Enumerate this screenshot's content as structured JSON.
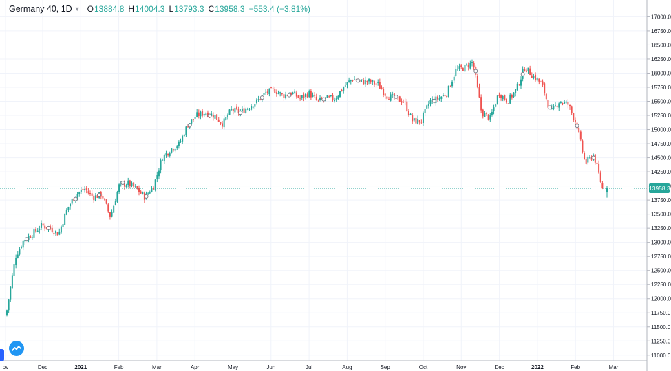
{
  "header": {
    "symbol": "Germany 40, 1D",
    "open_label": "O",
    "open_value": "13884.8",
    "high_label": "H",
    "high_value": "14004.3",
    "low_label": "L",
    "low_value": "13793.3",
    "close_label": "C",
    "close_value": "13958.3",
    "change": "−553.4 (−3.81%)"
  },
  "price_label": "13958.3",
  "colors": {
    "up": "#26a69a",
    "down": "#ef5350",
    "grid": "#f0f3fa",
    "axis_text": "#131722",
    "last_price_line": "#26a69a"
  },
  "icons": {
    "logo": "tradingview-logo-icon",
    "menu_caret": "chevron-down-icon"
  },
  "chart_data": {
    "type": "candlestick",
    "title": "Germany 40, 1D",
    "ylim": [
      10900,
      17200
    ],
    "y_ticks": [
      11000,
      11250,
      11500,
      11750,
      12000,
      12250,
      12500,
      12750,
      13000,
      13250,
      13500,
      13750,
      14000,
      14250,
      14500,
      14750,
      15000,
      15250,
      15500,
      15750,
      16000,
      16250,
      16500,
      16750,
      17000
    ],
    "y_tick_labels": [
      "11000.0",
      "11250.0",
      "11500.0",
      "11750.0",
      "12000.0",
      "12250.0",
      "12500.0",
      "12750.0",
      "13000.0",
      "13250.0",
      "13500.0",
      "13750.0",
      "14000.0",
      "14250.0",
      "14500.0",
      "14750.0",
      "15000.0",
      "15250.0",
      "15500.0",
      "15750.0",
      "16000.0",
      "16250.0",
      "16500.0",
      "16750.0",
      "17000.0"
    ],
    "x_labels": [
      "ov",
      "Dec",
      "2021",
      "Feb",
      "Mar",
      "Apr",
      "May",
      "Jun",
      "Jul",
      "Aug",
      "Sep",
      "Oct",
      "Nov",
      "Dec",
      "2022",
      "Feb",
      "Mar"
    ],
    "x_bold_labels": [
      "2021",
      "2022"
    ],
    "last_price": 13958.3,
    "last_ohlc": {
      "open": 13884.8,
      "high": 14004.3,
      "low": 13793.3,
      "close": 13958.3
    },
    "close_path": [
      [
        "Nov 2",
        11800
      ],
      [
        "Nov 9",
        12750
      ],
      [
        "Nov 16",
        13050
      ],
      [
        "Nov 23",
        13150
      ],
      [
        "Dec 1",
        13300
      ],
      [
        "Dec 8",
        13250
      ],
      [
        "Dec 15",
        13150
      ],
      [
        "Dec 22",
        13600
      ],
      [
        "Jan 4",
        13850
      ],
      [
        "Jan 8",
        13950
      ],
      [
        "Jan 15",
        13800
      ],
      [
        "Jan 22",
        13850
      ],
      [
        "Jan 29",
        13450
      ],
      [
        "Feb 5",
        14000
      ],
      [
        "Feb 12",
        14050
      ],
      [
        "Feb 19",
        13950
      ],
      [
        "Feb 26",
        13800
      ],
      [
        "Mar 5",
        14000
      ],
      [
        "Mar 12",
        14500
      ],
      [
        "Mar 19",
        14650
      ],
      [
        "Mar 26",
        14750
      ],
      [
        "Apr 2",
        15100
      ],
      [
        "Apr 9",
        15250
      ],
      [
        "Apr 16",
        15300
      ],
      [
        "Apr 23",
        15250
      ],
      [
        "Apr 30",
        15100
      ],
      [
        "May 7",
        15350
      ],
      [
        "May 14",
        15300
      ],
      [
        "May 21",
        15400
      ],
      [
        "May 28",
        15500
      ],
      [
        "Jun 4",
        15650
      ],
      [
        "Jun 11",
        15700
      ],
      [
        "Jun 18",
        15600
      ],
      [
        "Jun 25",
        15650
      ],
      [
        "Jul 2",
        15550
      ],
      [
        "Jul 9",
        15650
      ],
      [
        "Jul 16",
        15500
      ],
      [
        "Jul 23",
        15550
      ],
      [
        "Jul 30",
        15550
      ],
      [
        "Aug 6",
        15750
      ],
      [
        "Aug 13",
        15900
      ],
      [
        "Aug 20",
        15850
      ],
      [
        "Aug 27",
        15850
      ],
      [
        "Sep 3",
        15800
      ],
      [
        "Sep 10",
        15600
      ],
      [
        "Sep 17",
        15550
      ],
      [
        "Sep 24",
        15500
      ],
      [
        "Oct 1",
        15150
      ],
      [
        "Oct 8",
        15150
      ],
      [
        "Oct 15",
        15500
      ],
      [
        "Oct 22",
        15550
      ],
      [
        "Oct 29",
        15650
      ],
      [
        "Nov 5",
        16050
      ],
      [
        "Nov 12",
        16100
      ],
      [
        "Nov 19",
        16200
      ],
      [
        "Nov 26",
        15300
      ],
      [
        "Dec 3",
        15200
      ],
      [
        "Dec 10",
        15650
      ],
      [
        "Dec 17",
        15500
      ],
      [
        "Dec 24",
        15700
      ],
      [
        "Jan 3",
        16100
      ],
      [
        "Jan 10",
        15950
      ],
      [
        "Jan 17",
        15800
      ],
      [
        "Jan 24",
        15300
      ],
      [
        "Jan 31",
        15500
      ],
      [
        "Feb 7",
        15450
      ],
      [
        "Feb 14",
        15100
      ],
      [
        "Feb 21",
        14400
      ],
      [
        "Feb 24",
        14550
      ],
      [
        "Feb 28",
        13960
      ]
    ]
  }
}
